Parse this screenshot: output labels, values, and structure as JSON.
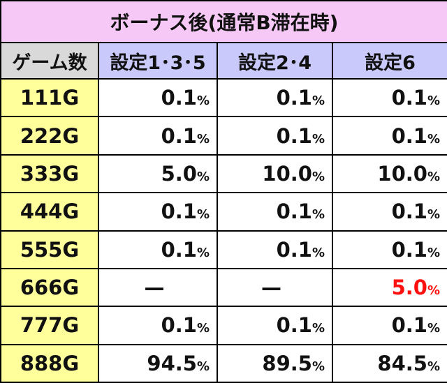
{
  "title": "ボーナス後(通常B滞在時)",
  "header": [
    "ゲーム数",
    "設定1･3･5",
    "設定2･4",
    "設定6"
  ],
  "rows": [
    {
      "game": "111G",
      "cells": [
        {
          "value": "0.1",
          "unit": "%"
        },
        {
          "value": "0.1",
          "unit": "%"
        },
        {
          "value": "0.1",
          "unit": "%"
        }
      ]
    },
    {
      "game": "222G",
      "cells": [
        {
          "value": "0.1",
          "unit": "%"
        },
        {
          "value": "0.1",
          "unit": "%"
        },
        {
          "value": "0.1",
          "unit": "%"
        }
      ]
    },
    {
      "game": "333G",
      "cells": [
        {
          "value": "5.0",
          "unit": "%"
        },
        {
          "value": "10.0",
          "unit": "%"
        },
        {
          "value": "10.0",
          "unit": "%"
        }
      ]
    },
    {
      "game": "444G",
      "cells": [
        {
          "value": "0.1",
          "unit": "%"
        },
        {
          "value": "0.1",
          "unit": "%"
        },
        {
          "value": "0.1",
          "unit": "%"
        }
      ]
    },
    {
      "game": "555G",
      "cells": [
        {
          "value": "0.1",
          "unit": "%"
        },
        {
          "value": "0.1",
          "unit": "%"
        },
        {
          "value": "0.1",
          "unit": "%"
        }
      ]
    },
    {
      "game": "666G",
      "cells": [
        {
          "value": "—"
        },
        {
          "value": "—"
        },
        {
          "value": "5.0",
          "unit": "%",
          "color": "#ff1010"
        }
      ]
    },
    {
      "game": "777G",
      "cells": [
        {
          "value": "0.1",
          "unit": "%"
        },
        {
          "value": "0.1",
          "unit": "%"
        },
        {
          "value": "0.1",
          "unit": "%"
        }
      ]
    },
    {
      "game": "888G",
      "cells": [
        {
          "value": "94.5",
          "unit": "%"
        },
        {
          "value": "89.5",
          "unit": "%"
        },
        {
          "value": "84.5",
          "unit": "%"
        }
      ]
    }
  ]
}
